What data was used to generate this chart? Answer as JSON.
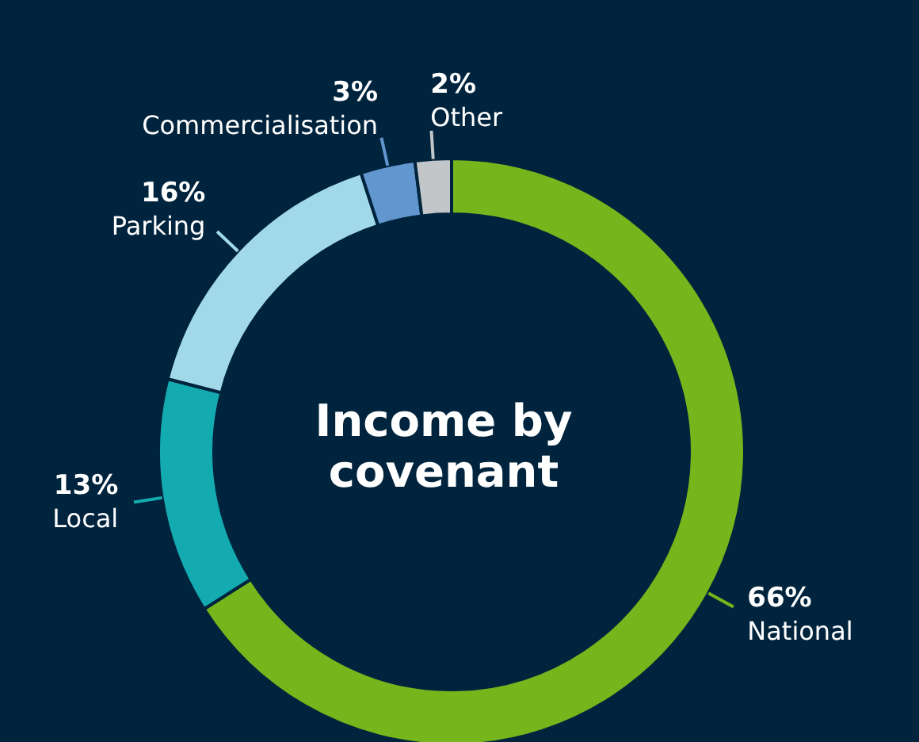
{
  "chart_data": {
    "type": "donut",
    "title": "Income by covenant",
    "categories": [
      "National",
      "Local",
      "Parking",
      "Commercialisation",
      "Other"
    ],
    "values": [
      66,
      13,
      16,
      3,
      2
    ],
    "value_labels": [
      "66%",
      "13%",
      "16%",
      "3%",
      "2%"
    ],
    "colors": [
      "#76b51c",
      "#13abb0",
      "#a2d9e8",
      "#6196cf",
      "#c3c6c9"
    ]
  }
}
